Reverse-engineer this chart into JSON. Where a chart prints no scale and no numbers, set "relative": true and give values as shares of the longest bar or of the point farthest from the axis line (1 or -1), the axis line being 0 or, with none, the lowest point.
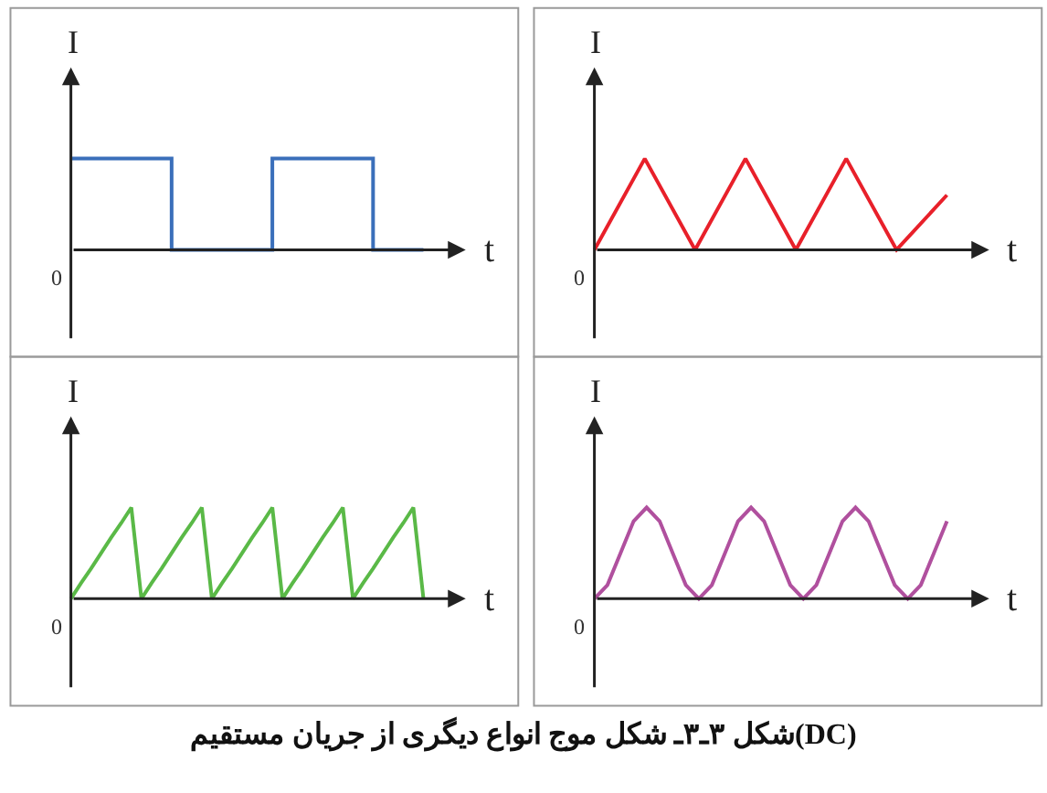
{
  "chart_data": [
    {
      "type": "step",
      "relative": true,
      "xlabel": "t",
      "ylabel": "I",
      "annotations": [
        "شکل ۳ـ۳ـ شکل موج انواع دیگری از جریان مستقیم(DC)",
        "0"
      ],
      "categories": [
        null,
        null,
        null,
        null,
        null,
        null,
        null,
        null
      ],
      "series": [
        {
          "color": "#3a6fba",
          "values": [
            1,
            1,
            0,
            0,
            1,
            1,
            0,
            0
          ]
        }
      ]
    },
    {
      "type": "line",
      "relative": true,
      "xlabel": "t",
      "ylabel": "I",
      "annotations": [
        "0"
      ],
      "categories": [
        null,
        null,
        null,
        null,
        null,
        null,
        null,
        null
      ],
      "series": [
        {
          "color": "#e8202a",
          "values": [
            0,
            1,
            0,
            1,
            0,
            1,
            0,
            0.6
          ]
        }
      ]
    },
    {
      "type": "line",
      "relative": true,
      "xlabel": "t",
      "ylabel": "I",
      "annotations": [
        "0"
      ],
      "categories": [
        null,
        null,
        null,
        null,
        null,
        null,
        null,
        null,
        null,
        null,
        null,
        null,
        null,
        null,
        null,
        null,
        null,
        null,
        null,
        null,
        null,
        null,
        null,
        null,
        null,
        null,
        null,
        null,
        null,
        null,
        null,
        null,
        null,
        null,
        null,
        null
      ],
      "series": [
        {
          "color": "#5ab947",
          "values": [
            0,
            0.17,
            0.33,
            0.5,
            0.67,
            0.83,
            1,
            0,
            0.17,
            0.33,
            0.5,
            0.67,
            0.83,
            1,
            0,
            0.17,
            0.33,
            0.5,
            0.67,
            0.83,
            1,
            0,
            0.17,
            0.33,
            0.5,
            0.67,
            0.83,
            1,
            0,
            0.17,
            0.33,
            0.5,
            0.67,
            0.83,
            1,
            0
          ]
        }
      ]
    },
    {
      "type": "line",
      "relative": true,
      "xlabel": "t",
      "ylabel": "I",
      "annotations": [
        "0"
      ],
      "categories": [
        null,
        null,
        null,
        null,
        null,
        null,
        null,
        null,
        null,
        null,
        null,
        null,
        null,
        null,
        null,
        null,
        null,
        null,
        null,
        null,
        null,
        null,
        null,
        null,
        null,
        null,
        null,
        null
      ],
      "series": [
        {
          "color": "#b0509e",
          "values": [
            0,
            0.15,
            0.5,
            0.85,
            1,
            0.85,
            0.5,
            0.15,
            0,
            0.15,
            0.5,
            0.85,
            1,
            0.85,
            0.5,
            0.15,
            0,
            0.15,
            0.5,
            0.85,
            1,
            0.85,
            0.5,
            0.15,
            0,
            0.15,
            0.5,
            0.85
          ]
        }
      ]
    }
  ]
}
